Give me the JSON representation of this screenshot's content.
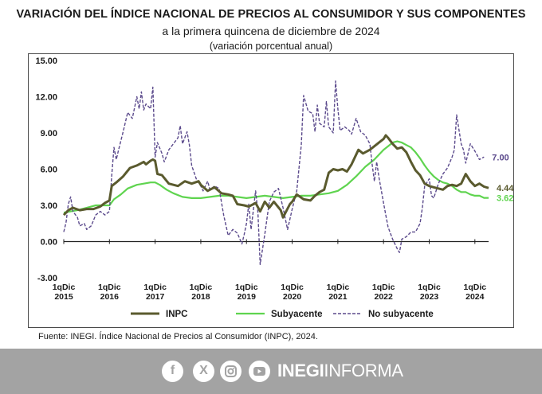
{
  "header": {
    "title": "VARIACIÓN DEL ÍNDICE NACIONAL DE PRECIOS AL CONSUMIDOR Y SUS COMPONENTES",
    "subtitle": "a la primera quincena de diciembre de 2024",
    "subtitle2": "(variación porcentual anual)"
  },
  "chart_data": {
    "type": "line",
    "ylim": [
      -3,
      15
    ],
    "yticks": [
      "15.00",
      "12.00",
      "9.00",
      "6.00",
      "3.00",
      "0.00",
      "-3.00"
    ],
    "ytick_values": [
      15,
      12,
      9,
      6,
      3,
      0,
      -3
    ],
    "xticks": [
      {
        "line1": "1qDic",
        "line2": "2015",
        "t": 0
      },
      {
        "line1": "1qDic",
        "line2": "2016",
        "t": 1
      },
      {
        "line1": "1qDic",
        "line2": "2017",
        "t": 2
      },
      {
        "line1": "1qDic",
        "line2": "2018",
        "t": 3
      },
      {
        "line1": "1qDic",
        "line2": "2019",
        "t": 4
      },
      {
        "line1": "1qDic",
        "line2": "2020",
        "t": 5
      },
      {
        "line1": "1qDic",
        "line2": "2021",
        "t": 6
      },
      {
        "line1": "1qDic",
        "line2": "2022",
        "t": 7
      },
      {
        "line1": "1qDic",
        "line2": "2023",
        "t": 8
      },
      {
        "line1": "1qDic",
        "line2": "2024",
        "t": 9
      }
    ],
    "series": [
      {
        "name": "INPC",
        "color": "#5a5a2e",
        "style": "solid",
        "end_label": "4.44",
        "points": [
          [
            0,
            2.2
          ],
          [
            0.1,
            2.6
          ],
          [
            0.2,
            2.8
          ],
          [
            0.35,
            2.6
          ],
          [
            0.5,
            2.7
          ],
          [
            0.65,
            2.7
          ],
          [
            0.8,
            2.9
          ],
          [
            0.9,
            3.2
          ],
          [
            1.0,
            3.4
          ],
          [
            1.05,
            4.6
          ],
          [
            1.15,
            4.9
          ],
          [
            1.3,
            5.4
          ],
          [
            1.45,
            6.1
          ],
          [
            1.6,
            6.3
          ],
          [
            1.75,
            6.6
          ],
          [
            1.8,
            6.4
          ],
          [
            1.9,
            6.7
          ],
          [
            1.95,
            6.8
          ],
          [
            2.0,
            6.7
          ],
          [
            2.05,
            5.6
          ],
          [
            2.15,
            5.5
          ],
          [
            2.3,
            4.8
          ],
          [
            2.5,
            4.6
          ],
          [
            2.65,
            5.0
          ],
          [
            2.8,
            4.8
          ],
          [
            2.95,
            5.0
          ],
          [
            3.0,
            4.7
          ],
          [
            3.15,
            4.2
          ],
          [
            3.3,
            4.5
          ],
          [
            3.45,
            4.0
          ],
          [
            3.6,
            3.9
          ],
          [
            3.7,
            3.8
          ],
          [
            3.8,
            3.1
          ],
          [
            3.95,
            3.0
          ],
          [
            4.05,
            2.9
          ],
          [
            4.2,
            3.2
          ],
          [
            4.3,
            2.5
          ],
          [
            4.4,
            3.3
          ],
          [
            4.5,
            2.8
          ],
          [
            4.6,
            3.3
          ],
          [
            4.75,
            2.6
          ],
          [
            4.8,
            2.0
          ],
          [
            4.95,
            3.1
          ],
          [
            5.0,
            3.3
          ],
          [
            5.1,
            3.9
          ],
          [
            5.25,
            3.5
          ],
          [
            5.4,
            3.4
          ],
          [
            5.5,
            3.8
          ],
          [
            5.6,
            4.1
          ],
          [
            5.7,
            4.3
          ],
          [
            5.8,
            5.7
          ],
          [
            5.9,
            6.0
          ],
          [
            6.0,
            5.9
          ],
          [
            6.1,
            6.0
          ],
          [
            6.2,
            5.8
          ],
          [
            6.3,
            6.4
          ],
          [
            6.4,
            7.2
          ],
          [
            6.45,
            7.6
          ],
          [
            6.55,
            7.3
          ],
          [
            6.7,
            7.6
          ],
          [
            6.8,
            7.9
          ],
          [
            6.9,
            8.2
          ],
          [
            7.0,
            8.5
          ],
          [
            7.05,
            8.8
          ],
          [
            7.1,
            8.6
          ],
          [
            7.2,
            8.1
          ],
          [
            7.3,
            7.7
          ],
          [
            7.4,
            7.8
          ],
          [
            7.5,
            7.4
          ],
          [
            7.6,
            6.6
          ],
          [
            7.7,
            5.9
          ],
          [
            7.8,
            5.5
          ],
          [
            7.9,
            4.8
          ],
          [
            8.0,
            4.6
          ],
          [
            8.1,
            4.5
          ],
          [
            8.2,
            4.4
          ],
          [
            8.3,
            4.3
          ],
          [
            8.4,
            4.6
          ],
          [
            8.5,
            4.7
          ],
          [
            8.6,
            4.6
          ],
          [
            8.7,
            4.8
          ],
          [
            8.8,
            5.6
          ],
          [
            8.9,
            5.0
          ],
          [
            9.0,
            4.6
          ],
          [
            9.1,
            4.8
          ],
          [
            9.2,
            4.55
          ],
          [
            9.3,
            4.44
          ]
        ]
      },
      {
        "name": "Subyacente",
        "color": "#5fd44f",
        "style": "solid",
        "end_label": "3.62",
        "points": [
          [
            0,
            2.4
          ],
          [
            0.15,
            2.5
          ],
          [
            0.3,
            2.6
          ],
          [
            0.5,
            2.8
          ],
          [
            0.7,
            3.0
          ],
          [
            0.9,
            3.0
          ],
          [
            1.0,
            3.0
          ],
          [
            1.1,
            3.5
          ],
          [
            1.25,
            3.9
          ],
          [
            1.4,
            4.4
          ],
          [
            1.6,
            4.7
          ],
          [
            1.75,
            4.8
          ],
          [
            1.9,
            4.9
          ],
          [
            2.0,
            4.9
          ],
          [
            2.1,
            4.7
          ],
          [
            2.25,
            4.3
          ],
          [
            2.4,
            4.0
          ],
          [
            2.6,
            3.7
          ],
          [
            2.8,
            3.6
          ],
          [
            3.0,
            3.6
          ],
          [
            3.2,
            3.7
          ],
          [
            3.4,
            3.8
          ],
          [
            3.6,
            3.8
          ],
          [
            3.8,
            3.7
          ],
          [
            4.0,
            3.6
          ],
          [
            4.2,
            3.7
          ],
          [
            4.4,
            3.8
          ],
          [
            4.6,
            3.7
          ],
          [
            4.8,
            3.6
          ],
          [
            5.0,
            3.7
          ],
          [
            5.2,
            3.8
          ],
          [
            5.4,
            3.8
          ],
          [
            5.6,
            3.9
          ],
          [
            5.8,
            4.0
          ],
          [
            6.0,
            4.2
          ],
          [
            6.2,
            4.7
          ],
          [
            6.4,
            5.4
          ],
          [
            6.6,
            6.2
          ],
          [
            6.8,
            6.8
          ],
          [
            7.0,
            7.6
          ],
          [
            7.1,
            7.9
          ],
          [
            7.2,
            8.2
          ],
          [
            7.3,
            8.3
          ],
          [
            7.4,
            8.2
          ],
          [
            7.5,
            8.0
          ],
          [
            7.6,
            7.8
          ],
          [
            7.7,
            7.4
          ],
          [
            7.8,
            6.9
          ],
          [
            7.9,
            6.3
          ],
          [
            8.0,
            5.8
          ],
          [
            8.1,
            5.4
          ],
          [
            8.2,
            5.1
          ],
          [
            8.3,
            4.9
          ],
          [
            8.4,
            4.8
          ],
          [
            8.5,
            4.6
          ],
          [
            8.6,
            4.3
          ],
          [
            8.7,
            4.1
          ],
          [
            8.8,
            4.1
          ],
          [
            8.9,
            3.9
          ],
          [
            9.0,
            3.8
          ],
          [
            9.1,
            3.8
          ],
          [
            9.2,
            3.62
          ],
          [
            9.3,
            3.62
          ]
        ]
      },
      {
        "name": "No subyacente",
        "color": "#5b4a8c",
        "style": "dashed",
        "end_label": "7.00",
        "points": [
          [
            0,
            0.8
          ],
          [
            0.05,
            1.6
          ],
          [
            0.1,
            3.1
          ],
          [
            0.15,
            3.7
          ],
          [
            0.2,
            2.5
          ],
          [
            0.3,
            2.0
          ],
          [
            0.35,
            1.3
          ],
          [
            0.45,
            1.5
          ],
          [
            0.5,
            1.0
          ],
          [
            0.6,
            1.3
          ],
          [
            0.7,
            2.2
          ],
          [
            0.8,
            2.5
          ],
          [
            0.9,
            2.2
          ],
          [
            1.0,
            2.5
          ],
          [
            1.05,
            5.5
          ],
          [
            1.1,
            7.8
          ],
          [
            1.15,
            6.8
          ],
          [
            1.2,
            7.6
          ],
          [
            1.3,
            9.1
          ],
          [
            1.4,
            10.7
          ],
          [
            1.5,
            10.2
          ],
          [
            1.6,
            12.0
          ],
          [
            1.65,
            11.0
          ],
          [
            1.7,
            12.4
          ],
          [
            1.75,
            10.9
          ],
          [
            1.8,
            11.4
          ],
          [
            1.9,
            11.0
          ],
          [
            1.95,
            12.8
          ],
          [
            2.0,
            7.0
          ],
          [
            2.05,
            8.2
          ],
          [
            2.15,
            7.3
          ],
          [
            2.2,
            6.6
          ],
          [
            2.3,
            7.6
          ],
          [
            2.4,
            8.1
          ],
          [
            2.5,
            8.6
          ],
          [
            2.55,
            9.6
          ],
          [
            2.6,
            8.1
          ],
          [
            2.7,
            9.1
          ],
          [
            2.75,
            8.0
          ],
          [
            2.8,
            6.3
          ],
          [
            2.9,
            5.2
          ],
          [
            3.0,
            4.6
          ],
          [
            3.05,
            4.2
          ],
          [
            3.15,
            5.0
          ],
          [
            3.2,
            4.3
          ],
          [
            3.3,
            4.6
          ],
          [
            3.4,
            4.4
          ],
          [
            3.5,
            2.2
          ],
          [
            3.6,
            0.5
          ],
          [
            3.7,
            1.0
          ],
          [
            3.8,
            0.7
          ],
          [
            3.9,
            -0.2
          ],
          [
            3.95,
            0.6
          ],
          [
            4.0,
            1.5
          ],
          [
            4.05,
            3.1
          ],
          [
            4.1,
            1.0
          ],
          [
            4.2,
            4.2
          ],
          [
            4.25,
            2.4
          ],
          [
            4.3,
            -1.9
          ],
          [
            4.4,
            0.6
          ],
          [
            4.5,
            3.3
          ],
          [
            4.6,
            4.1
          ],
          [
            4.7,
            4.4
          ],
          [
            4.8,
            2.8
          ],
          [
            4.9,
            1.0
          ],
          [
            5.0,
            2.7
          ],
          [
            5.1,
            4.2
          ],
          [
            5.2,
            8.0
          ],
          [
            5.25,
            12.1
          ],
          [
            5.35,
            10.8
          ],
          [
            5.45,
            10.6
          ],
          [
            5.5,
            9.1
          ],
          [
            5.55,
            11.3
          ],
          [
            5.6,
            9.8
          ],
          [
            5.7,
            9.5
          ],
          [
            5.75,
            11.6
          ],
          [
            5.8,
            9.5
          ],
          [
            5.9,
            9.0
          ],
          [
            5.95,
            13.3
          ],
          [
            6.0,
            11.0
          ],
          [
            6.05,
            9.2
          ],
          [
            6.15,
            9.5
          ],
          [
            6.25,
            9.2
          ],
          [
            6.3,
            8.9
          ],
          [
            6.4,
            10.2
          ],
          [
            6.5,
            9.1
          ],
          [
            6.6,
            8.8
          ],
          [
            6.7,
            8.1
          ],
          [
            6.75,
            6.4
          ],
          [
            6.8,
            5.0
          ],
          [
            6.85,
            6.6
          ],
          [
            6.9,
            5.3
          ],
          [
            7.0,
            3.2
          ],
          [
            7.05,
            2.2
          ],
          [
            7.1,
            1.2
          ],
          [
            7.2,
            0.2
          ],
          [
            7.3,
            -0.6
          ],
          [
            7.35,
            -0.9
          ],
          [
            7.4,
            0.2
          ],
          [
            7.5,
            0.4
          ],
          [
            7.6,
            0.8
          ],
          [
            7.7,
            0.8
          ],
          [
            7.8,
            1.5
          ],
          [
            7.85,
            2.8
          ],
          [
            7.9,
            4.6
          ],
          [
            8.0,
            5.2
          ],
          [
            8.05,
            3.8
          ],
          [
            8.1,
            3.6
          ],
          [
            8.2,
            4.8
          ],
          [
            8.3,
            5.6
          ],
          [
            8.4,
            6.1
          ],
          [
            8.5,
            7.0
          ],
          [
            8.55,
            7.6
          ],
          [
            8.6,
            10.5
          ],
          [
            8.7,
            8.1
          ],
          [
            8.75,
            7.6
          ],
          [
            8.8,
            6.5
          ],
          [
            8.9,
            8.1
          ],
          [
            9.0,
            7.5
          ],
          [
            9.1,
            6.8
          ],
          [
            9.2,
            7.0
          ]
        ]
      }
    ],
    "legend": [
      "INPC",
      "Subyacente",
      "No subyacente"
    ],
    "legend_position": "bottom"
  },
  "source": {
    "label": "Fuente: ",
    "text": "INEGI. Índice Nacional de Precios al Consumidor (INPC), 2024."
  },
  "footer": {
    "icons": [
      "facebook-icon",
      "x-icon",
      "instagram-icon",
      "youtube-icon"
    ],
    "brand_bold": "INEGI",
    "brand_thin": "INFORMA"
  }
}
